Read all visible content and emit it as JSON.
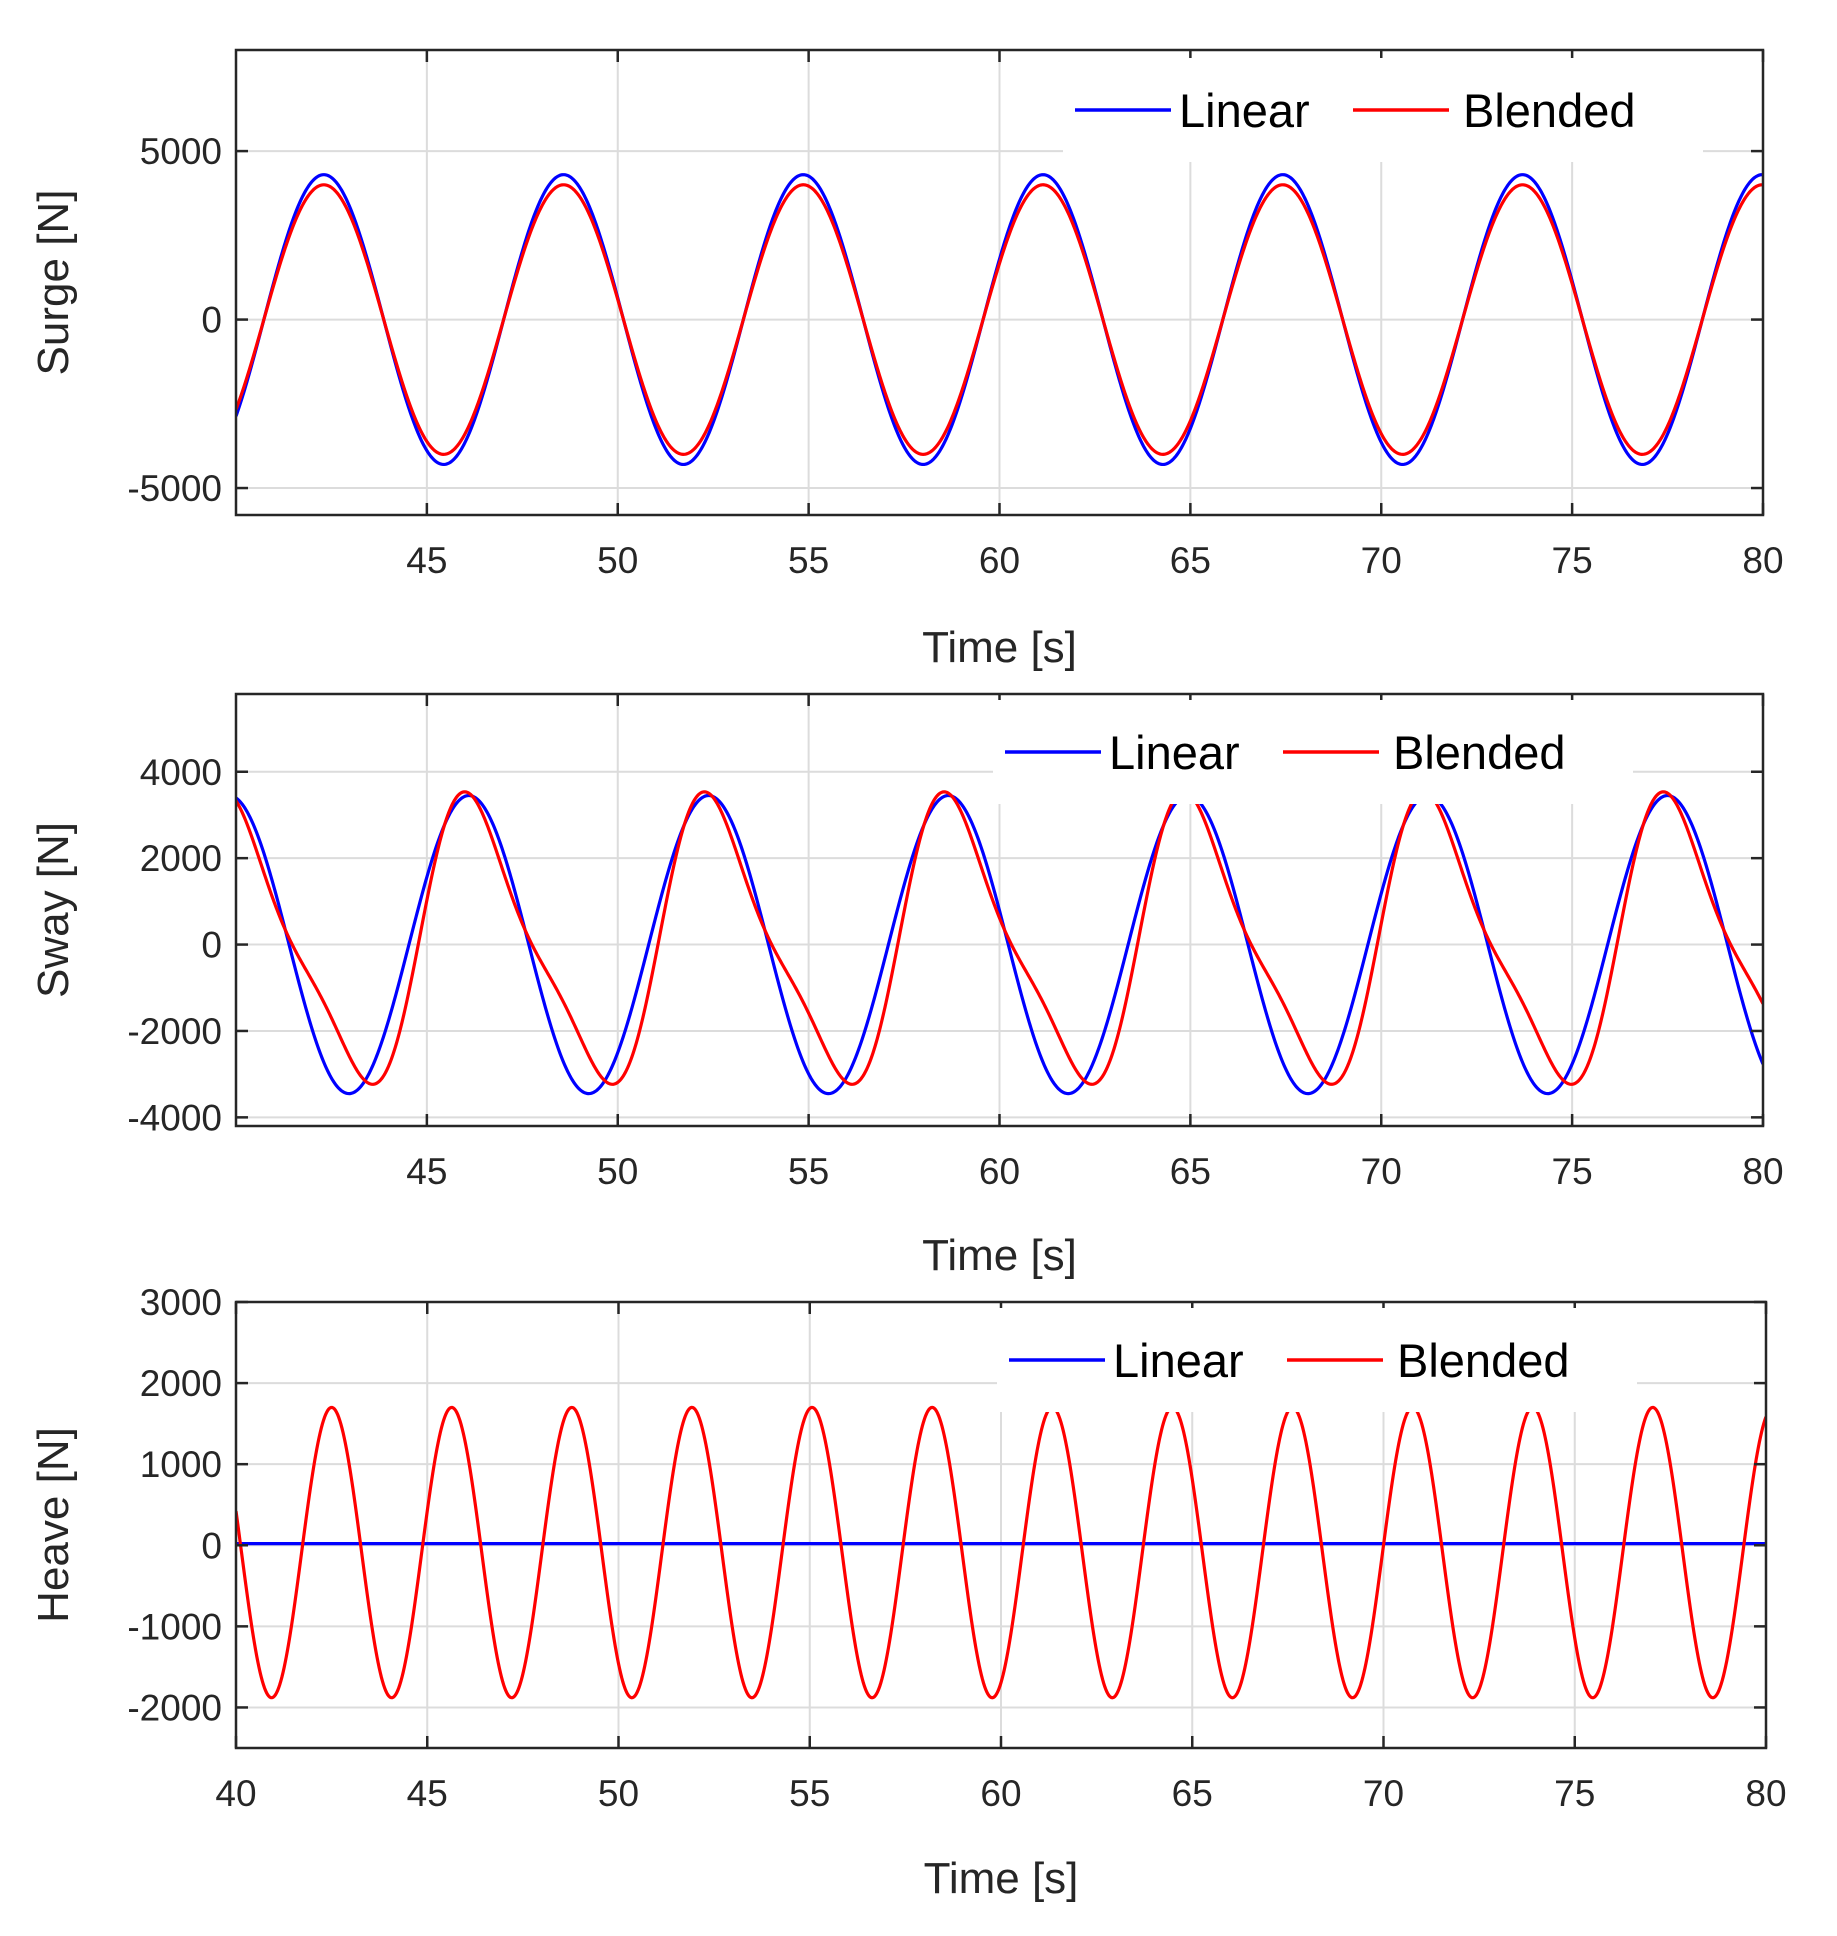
{
  "chart_data": [
    {
      "type": "line",
      "id": "surge",
      "xlabel": "Time [s]",
      "ylabel": "Surge [N]",
      "xlim": [
        40,
        80
      ],
      "ylim": [
        -5800,
        8000
      ],
      "xticks": [
        45,
        50,
        55,
        60,
        65,
        70,
        75,
        80
      ],
      "xtick_labels": [
        "45",
        "50",
        "55",
        "60",
        "65",
        "70",
        "75",
        "80"
      ],
      "yticks": [
        -5000,
        0,
        5000
      ],
      "ytick_labels": [
        "-5000",
        "0",
        "5000"
      ],
      "grid": true,
      "legend_position": "top-right",
      "period_s": 6.28,
      "series": [
        {
          "name": "Linear",
          "color": "#0000ff",
          "shape": "sine",
          "amplitude": 4300,
          "peak_time_s": 42.3,
          "harmonic2_amplitude": 0,
          "harmonic2_phase": 0,
          "offset": 0
        },
        {
          "name": "Blended",
          "color": "#ff0000",
          "shape": "sine",
          "amplitude": 4000,
          "peak_time_s": 42.3,
          "harmonic2_amplitude": 0,
          "harmonic2_phase": 0,
          "offset": 0
        }
      ]
    },
    {
      "type": "line",
      "id": "sway",
      "xlabel": "Time [s]",
      "ylabel": "Sway [N]",
      "xlim": [
        40,
        80
      ],
      "ylim": [
        -4200,
        5800
      ],
      "xticks": [
        45,
        50,
        55,
        60,
        65,
        70,
        75,
        80
      ],
      "xtick_labels": [
        "45",
        "50",
        "55",
        "60",
        "65",
        "70",
        "75",
        "80"
      ],
      "yticks": [
        -4000,
        -2000,
        0,
        2000,
        4000
      ],
      "ytick_labels": [
        "-4000",
        "-2000",
        "0",
        "2000",
        "4000"
      ],
      "grid": true,
      "legend_position": "top-right",
      "period_s": 6.28,
      "series": [
        {
          "name": "Linear",
          "color": "#0000ff",
          "shape": "sine",
          "amplitude": 3450,
          "peak_time_s": 46.1,
          "harmonic2_amplitude": 0,
          "harmonic2_phase": 0,
          "offset": 0
        },
        {
          "name": "Blended",
          "color": "#ff0000",
          "shape": "sine",
          "amplitude": 3100,
          "peak_time_s": 46.3,
          "harmonic2_amplitude": 750,
          "harmonic2_phase": 1.3,
          "offset": 0
        }
      ]
    },
    {
      "type": "line",
      "id": "heave",
      "xlabel": "Time [s]",
      "ylabel": "Heave [N]",
      "xlim": [
        40,
        80
      ],
      "ylim": [
        -2500,
        3000
      ],
      "xticks": [
        40,
        45,
        50,
        55,
        60,
        65,
        70,
        75,
        80
      ],
      "xtick_labels": [
        "40",
        "45",
        "50",
        "55",
        "60",
        "65",
        "70",
        "75",
        "80"
      ],
      "yticks": [
        -2000,
        -1000,
        0,
        1000,
        2000,
        3000
      ],
      "ytick_labels": [
        "-2000",
        "-1000",
        "0",
        "1000",
        "2000",
        "3000"
      ],
      "grid": true,
      "legend_position": "top-right",
      "period_s": 3.14,
      "series": [
        {
          "name": "Linear",
          "color": "#0000ff",
          "shape": "sine",
          "amplitude": 0,
          "peak_time_s": 42.5,
          "harmonic2_amplitude": 0,
          "harmonic2_phase": 0,
          "offset": 20
        },
        {
          "name": "Blended",
          "color": "#ff0000",
          "shape": "sine",
          "amplitude": 1790,
          "peak_time_s": 42.5,
          "harmonic2_amplitude": 0,
          "harmonic2_phase": 0,
          "offset": -90
        }
      ]
    }
  ]
}
